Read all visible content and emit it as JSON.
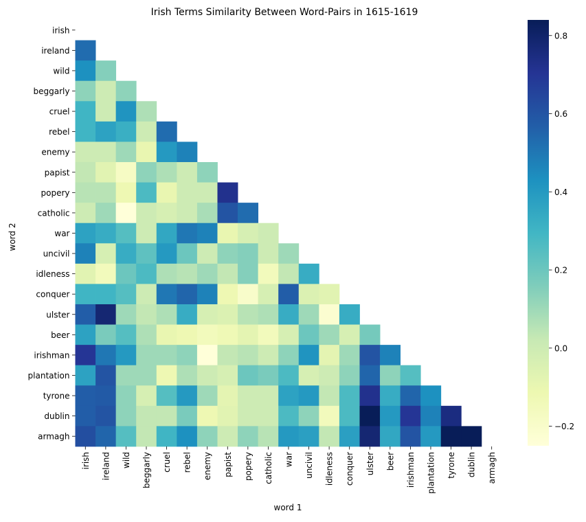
{
  "chart_data": {
    "type": "heatmap",
    "title": "Irish Terms Similarity Between Word-Pairs in 1615-1619",
    "xlabel": "word 1",
    "ylabel": "word 2",
    "x_categories": [
      "irish",
      "ireland",
      "wild",
      "beggarly",
      "cruel",
      "rebel",
      "enemy",
      "papist",
      "popery",
      "catholic",
      "war",
      "uncivil",
      "idleness",
      "conquer",
      "ulster",
      "beer",
      "irishman",
      "plantation",
      "tyrone",
      "dublin",
      "armagh"
    ],
    "y_categories": [
      "irish",
      "ireland",
      "wild",
      "beggarly",
      "cruel",
      "rebel",
      "enemy",
      "papist",
      "popery",
      "catholic",
      "war",
      "uncivil",
      "idleness",
      "conquer",
      "ulster",
      "beer",
      "irishman",
      "plantation",
      "tyrone",
      "dublin",
      "armagh"
    ],
    "mask": "upper-triangle-and-diagonal",
    "colormap": "YlGnBu",
    "value_range": [
      -0.25,
      0.84
    ],
    "colorbar_ticks": [
      -0.2,
      0.0,
      0.2,
      0.4,
      0.6,
      0.8
    ],
    "colorbar_tick_labels": [
      "−0.2",
      "0.0",
      "0.2",
      "0.4",
      "0.6",
      "0.8"
    ],
    "values": [
      [],
      [
        0.53
      ],
      [
        0.43,
        0.15
      ],
      [
        0.13,
        0.0,
        0.13
      ],
      [
        0.3,
        0.0,
        0.42,
        0.07
      ],
      [
        0.3,
        0.37,
        0.32,
        0.0,
        0.53
      ],
      [
        0.0,
        0.0,
        0.1,
        -0.1,
        0.4,
        0.47
      ],
      [
        0.03,
        -0.07,
        -0.18,
        0.13,
        0.07,
        0.0,
        0.13
      ],
      [
        0.05,
        0.05,
        -0.12,
        0.27,
        -0.1,
        0.0,
        0.0,
        0.72
      ],
      [
        0.0,
        0.1,
        -0.25,
        0.0,
        -0.03,
        0.0,
        0.08,
        0.6,
        0.53
      ],
      [
        0.37,
        0.33,
        0.25,
        0.0,
        0.35,
        0.5,
        0.47,
        -0.1,
        -0.03,
        0.0
      ],
      [
        0.47,
        -0.03,
        0.33,
        0.23,
        0.4,
        0.2,
        0.0,
        0.13,
        0.15,
        0.0,
        0.1
      ],
      [
        -0.07,
        -0.15,
        0.2,
        0.27,
        0.07,
        0.05,
        0.1,
        0.03,
        0.15,
        -0.15,
        0.03,
        0.33
      ],
      [
        0.3,
        0.3,
        0.25,
        0.0,
        0.5,
        0.55,
        0.47,
        -0.12,
        -0.2,
        -0.03,
        0.57,
        -0.05,
        -0.07
      ],
      [
        0.57,
        0.78,
        0.1,
        0.03,
        0.07,
        0.33,
        -0.03,
        -0.05,
        0.05,
        0.07,
        0.33,
        0.1,
        -0.22,
        0.33
      ],
      [
        0.37,
        0.17,
        0.25,
        0.07,
        -0.1,
        -0.12,
        -0.15,
        -0.13,
        -0.08,
        -0.15,
        -0.03,
        0.2,
        0.1,
        -0.03,
        0.18
      ],
      [
        0.7,
        0.5,
        0.4,
        0.1,
        0.1,
        0.13,
        -0.25,
        0.03,
        0.05,
        0.0,
        0.13,
        0.42,
        -0.08,
        0.1,
        0.6,
        0.47
      ],
      [
        0.37,
        0.6,
        0.1,
        0.1,
        -0.12,
        0.07,
        0.0,
        -0.03,
        0.2,
        0.17,
        0.27,
        -0.03,
        0.0,
        0.13,
        0.55,
        0.13,
        0.25
      ],
      [
        0.57,
        0.58,
        0.13,
        -0.03,
        0.25,
        0.4,
        0.1,
        -0.08,
        0.0,
        0.0,
        0.37,
        0.4,
        0.03,
        0.27,
        0.72,
        0.33,
        0.55,
        0.43
      ],
      [
        0.57,
        0.6,
        0.13,
        0.03,
        0.03,
        0.17,
        -0.12,
        -0.07,
        0.0,
        0.0,
        0.27,
        0.13,
        -0.15,
        0.27,
        0.84,
        0.4,
        0.7,
        0.47,
        0.75
      ],
      [
        0.62,
        0.55,
        0.25,
        0.03,
        0.3,
        0.43,
        0.13,
        0.0,
        0.13,
        0.05,
        0.4,
        0.38,
        0.03,
        0.38,
        0.78,
        0.35,
        0.6,
        0.4,
        0.84,
        0.84
      ]
    ]
  }
}
